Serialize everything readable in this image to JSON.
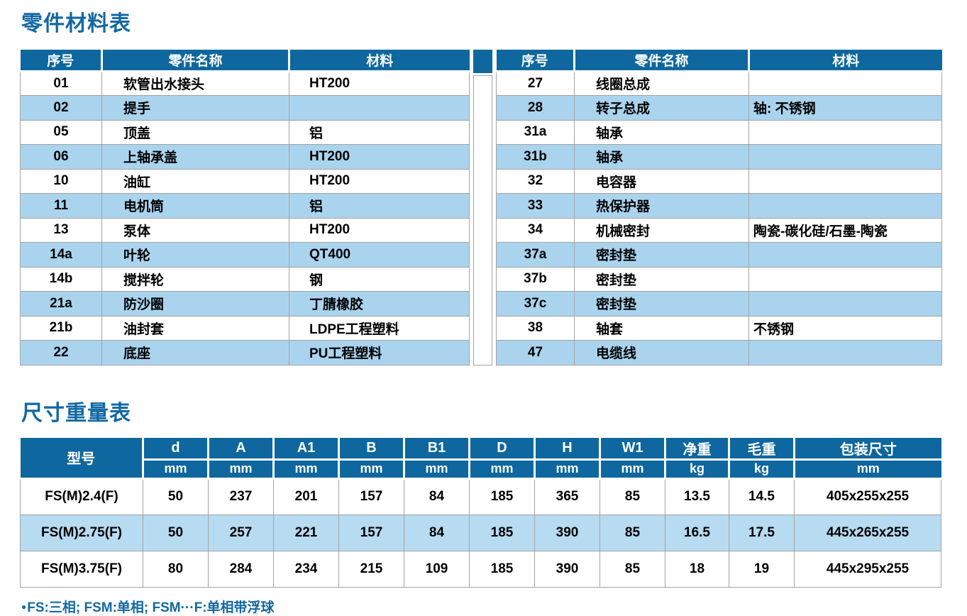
{
  "colors": {
    "header_blue": "#0e679e",
    "title_blue": "#1268a3",
    "row_alt_blue": "#aad4ee",
    "row_alt_blue_dims": "#b7dbf1",
    "border_gray": "#a3a3a3"
  },
  "parts_section": {
    "title": "零件材料表",
    "headers": [
      "序号",
      "零件名称",
      "材料"
    ],
    "left_table_rows": [
      [
        "01",
        "软管出水接头",
        "HT200"
      ],
      [
        "02",
        "提手",
        ""
      ],
      [
        "05",
        "顶盖",
        "铝"
      ],
      [
        "06",
        "上轴承盖",
        "HT200"
      ],
      [
        "10",
        "油缸",
        "HT200"
      ],
      [
        "11",
        "电机筒",
        "铝"
      ],
      [
        "13",
        "泵体",
        "HT200"
      ],
      [
        "14a",
        "叶轮",
        "QT400"
      ],
      [
        "14b",
        "搅拌轮",
        "钢"
      ],
      [
        "21a",
        "防沙圈",
        "丁腈橡胶"
      ],
      [
        "21b",
        "油封套",
        "LDPE工程塑料"
      ],
      [
        "22",
        "底座",
        "PU工程塑料"
      ]
    ],
    "right_table_rows": [
      [
        "27",
        "线圈总成",
        ""
      ],
      [
        "28",
        "转子总成",
        "轴: 不锈钢"
      ],
      [
        "31a",
        "轴承",
        ""
      ],
      [
        "31b",
        "轴承",
        ""
      ],
      [
        "32",
        "电容器",
        ""
      ],
      [
        "33",
        "热保护器",
        ""
      ],
      [
        "34",
        "机械密封",
        "陶瓷-碳化硅/石墨-陶瓷"
      ],
      [
        "37a",
        "密封垫",
        ""
      ],
      [
        "37b",
        "密封垫",
        ""
      ],
      [
        "37c",
        "密封垫",
        ""
      ],
      [
        "38",
        "轴套",
        "不锈钢"
      ],
      [
        "47",
        "电缆线",
        ""
      ]
    ]
  },
  "dimensions_section": {
    "title": "尺寸重量表",
    "model_header": "型号",
    "columns": [
      {
        "label": "d",
        "unit": "mm"
      },
      {
        "label": "A",
        "unit": "mm"
      },
      {
        "label": "A1",
        "unit": "mm"
      },
      {
        "label": "B",
        "unit": "mm"
      },
      {
        "label": "B1",
        "unit": "mm"
      },
      {
        "label": "D",
        "unit": "mm"
      },
      {
        "label": "H",
        "unit": "mm"
      },
      {
        "label": "W1",
        "unit": "mm"
      },
      {
        "label": "净重",
        "unit": "kg"
      },
      {
        "label": "毛重",
        "unit": "kg"
      },
      {
        "label": "包装尺寸",
        "unit": "mm"
      }
    ],
    "rows": [
      [
        "FS(M)2.4(F)",
        "50",
        "237",
        "201",
        "157",
        "84",
        "185",
        "365",
        "85",
        "13.5",
        "14.5",
        "405x255x255"
      ],
      [
        "FS(M)2.75(F)",
        "50",
        "257",
        "221",
        "157",
        "84",
        "185",
        "390",
        "85",
        "16.5",
        "17.5",
        "445x265x255"
      ],
      [
        "FS(M)3.75(F)",
        "80",
        "284",
        "234",
        "215",
        "109",
        "185",
        "390",
        "85",
        "18",
        "19",
        "445x295x255"
      ]
    ]
  },
  "footnote": {
    "bullet": "●",
    "text": "FS:三相; FSM:单相; FSM···F:单相带浮球"
  }
}
